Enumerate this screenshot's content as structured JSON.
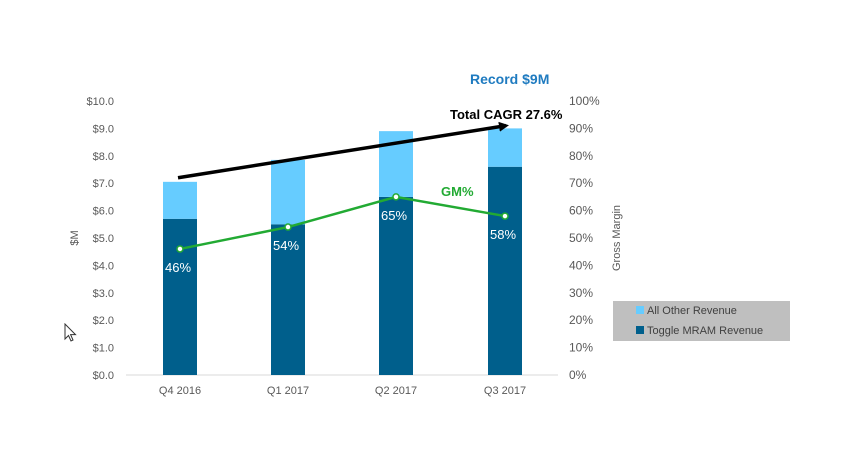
{
  "chart_data": {
    "type": "bar",
    "stacked": true,
    "categories": [
      "Q4 2016",
      "Q1 2017",
      "Q2 2017",
      "Q3 2017"
    ],
    "series": [
      {
        "name": "Toggle MRAM Revenue",
        "values": [
          5.7,
          5.5,
          6.5,
          7.6
        ]
      },
      {
        "name": "All Other Revenue",
        "values": [
          1.35,
          2.35,
          2.4,
          1.4
        ]
      }
    ],
    "line_series": {
      "name": "GM%",
      "values": [
        46,
        54,
        65,
        58
      ],
      "labels": [
        "46%",
        "54%",
        "65%",
        "58%"
      ]
    },
    "y_left": {
      "label": "$M",
      "min": 0,
      "max": 10,
      "ticks": [
        "$0.0",
        "$1.0",
        "$2.0",
        "$3.0",
        "$4.0",
        "$5.0",
        "$6.0",
        "$7.0",
        "$8.0",
        "$9.0",
        "$10.0"
      ]
    },
    "y_right": {
      "label": "Gross Margin",
      "min": 0,
      "max": 100,
      "ticks": [
        "0%",
        "10%",
        "20%",
        "30%",
        "40%",
        "50%",
        "60%",
        "70%",
        "80%",
        "90%",
        "100%"
      ]
    },
    "annotations": {
      "record": "Record $9M",
      "cagr": "Total CAGR 27.6%",
      "gm": "GM%",
      "trend_from": 7.2,
      "trend_to": 9.1
    },
    "legend": {
      "position": "right",
      "entries": [
        "All Other Revenue",
        "Toggle MRAM Revenue"
      ]
    },
    "colors": {
      "mram": "#005F8C",
      "other": "#66CCFF",
      "gm_line": "#22AA33",
      "record_text": "#1F7BC0",
      "arrow": "#000000",
      "axis_text": "#595959",
      "legend_bg": "#BFBFBF"
    }
  },
  "icons": {
    "cursor": "mouse-pointer-icon"
  }
}
